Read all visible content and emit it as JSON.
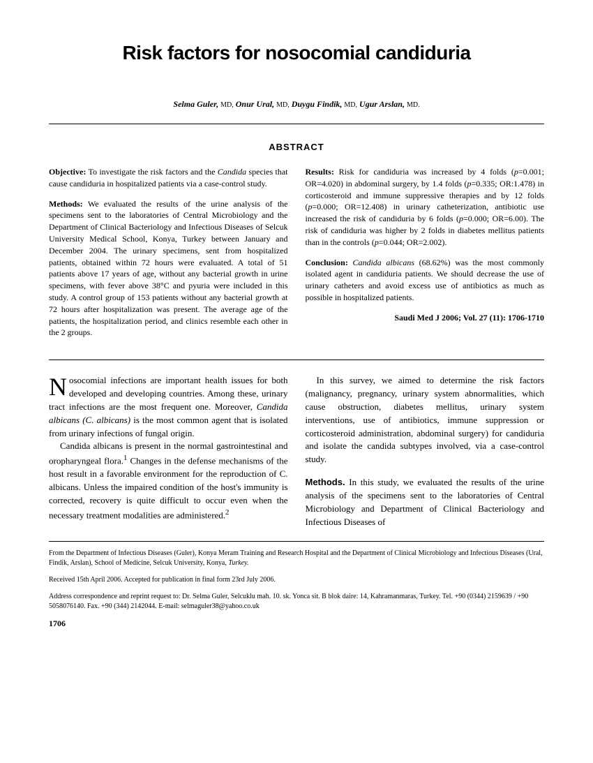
{
  "title": "Risk factors for nosocomial candiduria",
  "authors_html": "<span class='name'>Selma Guler,</span> <span class='degree'>MD,</span> <span class='name'>Onur Ural,</span> <span class='degree'>MD,</span> <span class='name'>Duygu Findik,</span> <span class='degree'>MD,</span> <span class='name'>Ugur Arslan,</span> <span class='degree'>MD.</span>",
  "abstract_heading": "ABSTRACT",
  "abstract_left": {
    "objective": "<b>Objective:</b> To investigate the risk factors and the <i>Candida</i> species that cause candiduria in hospitalized patients via a case-control study.",
    "methods": "<b>Methods:</b> We evaluated the results of the urine analysis of the specimens sent to the laboratories of Central Microbiology and the Department of Clinical Bacteriology and Infectious Diseases of Selcuk University Medical School, Konya, Turkey between January and December 2004. The urinary specimens, sent from hospitalized patients, obtained within 72 hours were evaluated. A total of 51 patients above 17 years of age, without any bacterial growth in urine specimens, with fever above 38°C and pyuria were included in this study. A control group of 153 patients without any bacterial growth at 72 hours after hospitalization was present. The average age of the patients, the hospitalization period, and clinics resemble each other in the 2 groups."
  },
  "abstract_right": {
    "results": "<b>Results:</b> Risk for candiduria was increased by 4 folds (<i>p</i>=0.001; OR=4.020) in abdominal surgery, by 1.4 folds (<i>p</i>=0.335; OR:1.478) in corticosteroid and immune suppressive therapies and by 12 folds (<i>p</i>=0.000; OR=12.408) in urinary catheterization, antibiotic use increased the risk of candiduria by 6 folds (<i>p</i>=0.000; OR=6.00). The risk of candiduria was higher by 2 folds in diabetes mellitus patients than in the controls (<i>p</i>=0.044; OR=2.002).",
    "conclusion": "<b>Conclusion:</b> <i>Candida albicans</i> (68.62%) was the most commonly isolated agent in candiduria patients. We should decrease the use of urinary catheters and avoid excess use of antibiotics as much as possible in hospitalized patients."
  },
  "citation": "Saudi Med J 2006; Vol. 27 (11): 1706-1710",
  "body_left": {
    "p1": "osocomial infections are important health issues for both developed and developing countries. Among these, urinary tract infections are the most frequent one. Moreover, <i>Candida albicans (C. albicans)</i> is the most common agent that is isolated from urinary infections of fungal origin.",
    "p2": "Candida albicans is present in the normal gastrointestinal and oropharyngeal flora.<sup>1</sup> Changes in the defense mechanisms of the host result in a favorable environment for the reproduction of C. albicans. Unless the impaired condition of the host's immunity is corrected, recovery is quite difficult to occur even when the necessary treatment modalities are administered.<sup>2</sup>"
  },
  "body_right": {
    "p1": "In this survey, we aimed to determine the risk factors (malignancy, pregnancy, urinary system abnormalities, which cause obstruction, diabetes mellitus, urinary system interventions, use of antibiotics, immune suppression or corticosteroid administration, abdominal surgery) for candiduria and isolate the candida subtypes involved, via a case-control study.",
    "p2": "<span class='methods-heading'>Methods.</span> In this study, we evaluated the results of the urine analysis of the specimens sent to the laboratories of Central Microbiology and Department of Clinical Bacteriology and Infectious Diseases of"
  },
  "footer": {
    "affiliation": "From the Department of Infectious Diseases (Guler), Konya Meram Training and Research Hospital and the Department of Clinical Microbiology and Infectious Diseases (Ural, Findik, Arslan), School of Medicine, Selcuk University, Konya, <i>Turkey.</i>",
    "received": "Received 15th April 2006. Accepted for publication in final form 23rd July 2006.",
    "correspondence": "Address correspondence and reprint request to: Dr. Selma Guler, Selcuklu mah. 10. sk. Yonca sit. B blok daire: 14, Kahramanmaras, Turkey. Tel. +90 (0344) 2159639 / +90 5058076140. Fax. +90 (344) 2142044. E-mail: selmaguler38@yahoo.co.uk"
  },
  "page_number": "1706"
}
